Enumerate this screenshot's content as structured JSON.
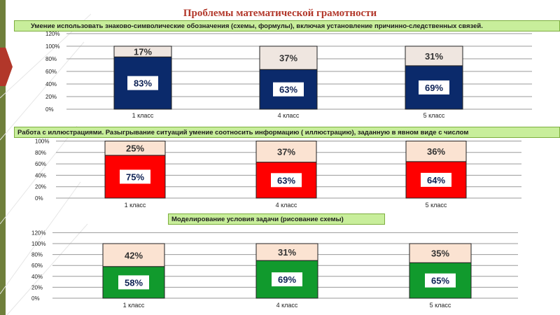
{
  "title": "Проблемы математической грамотности",
  "colors": {
    "title": "#b2372a",
    "banner": "#c8ee9b",
    "top_segment_1": "#efe6e0",
    "top_segment_2": "#fbe3d2",
    "top_segment_3": "#fbe3d2",
    "series_1": "#0b2a6b",
    "series_2": "#ff0000",
    "series_3": "#119a2d"
  },
  "chart_data": [
    {
      "type": "bar",
      "stacked": true,
      "title": "Умение использовать знаково-символические обозначения (схемы, формулы), включая установление причинно-следственных связей.",
      "categories": [
        "1 класс",
        "4 класс",
        "5 класс"
      ],
      "series": [
        {
          "values": [
            83,
            63,
            69
          ],
          "labels": [
            "83%",
            "63%",
            "69%"
          ]
        },
        {
          "values": [
            17,
            37,
            31
          ],
          "labels": [
            "17%",
            "37%",
            "31%"
          ]
        }
      ],
      "ylim": [
        0,
        120
      ],
      "yticks": [
        "0%",
        "20%",
        "40%",
        "60%",
        "80%",
        "100%",
        "120%"
      ],
      "grid": true
    },
    {
      "type": "bar",
      "stacked": true,
      "title": "Работа с иллюстрациями. Разыгрывание ситуаций умение соотносить информацию ( иллюстрацию), заданную в явном виде с числом",
      "categories": [
        "1 класс",
        "4 класс",
        "5 класс"
      ],
      "series": [
        {
          "values": [
            75,
            63,
            64
          ],
          "labels": [
            "75%",
            "63%",
            "64%"
          ]
        },
        {
          "values": [
            25,
            37,
            36
          ],
          "labels": [
            "25%",
            "37%",
            "36%"
          ]
        }
      ],
      "ylim": [
        0,
        100
      ],
      "yticks": [
        "0%",
        "20%",
        "40%",
        "60%",
        "80%",
        "100%"
      ],
      "grid": true
    },
    {
      "type": "bar",
      "stacked": true,
      "title": "Моделирование условия задачи (рисование схемы)",
      "categories": [
        "1 класс",
        "4 класс",
        "5 класс"
      ],
      "series": [
        {
          "values": [
            58,
            69,
            65
          ],
          "labels": [
            "58%",
            "69%",
            "65%"
          ]
        },
        {
          "values": [
            42,
            31,
            35
          ],
          "labels": [
            "42%",
            "31%",
            "35%"
          ]
        }
      ],
      "ylim": [
        0,
        120
      ],
      "yticks": [
        "0%",
        "20%",
        "40%",
        "60%",
        "80%",
        "100%",
        "120%"
      ],
      "grid": true
    }
  ]
}
